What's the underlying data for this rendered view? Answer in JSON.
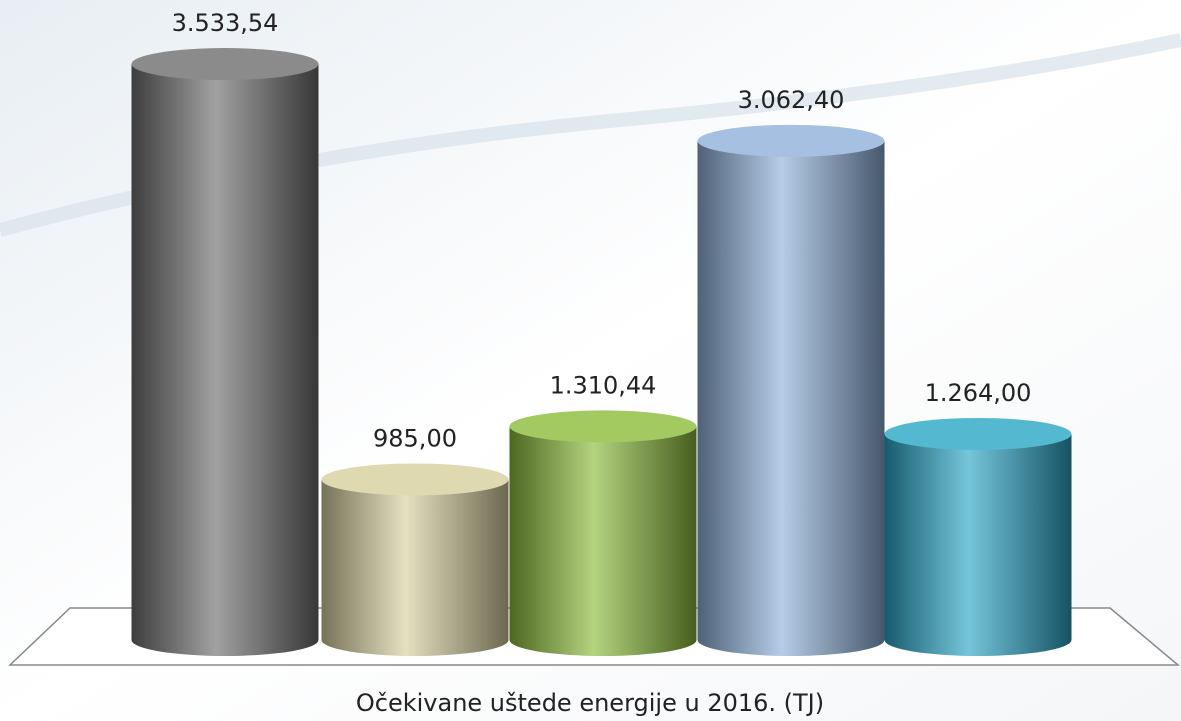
{
  "chart_data": {
    "type": "bar",
    "title": "Očekivane uštede energije u 2016. (TJ)",
    "categories": [
      null,
      null,
      null,
      null,
      null
    ],
    "values": [
      3533.54,
      985.0,
      1310.44,
      3062.4,
      1264.0
    ],
    "value_labels": [
      "3.533,54",
      "985,00",
      "1.310,44",
      "3.062,40",
      "1.264,00"
    ],
    "colors": [
      "#6e6e6e",
      "#d6cf9e",
      "#8cbc3a",
      "#8eb0da",
      "#2aa6c6"
    ]
  }
}
